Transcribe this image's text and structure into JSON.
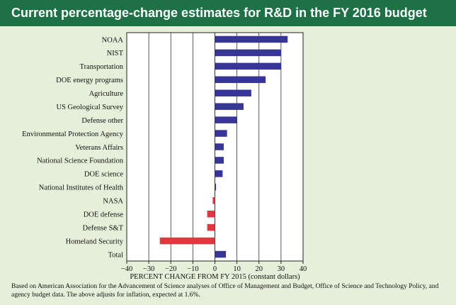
{
  "header": {
    "title": "Current percentage-change estimates for R&D in the FY 2016 budget"
  },
  "footnote": "Based on American Association for the Advancement of Science analyses of Office of Management and Budget, Office of Science and Technology Policy, and agency budget data. The above adjusts for inflation, expected at 1.6%.",
  "colors": {
    "header_bg": "#1d7145",
    "positive_bar": "#373598",
    "negative_bar": "#e4373d",
    "background": "#e6efd9"
  },
  "chart_data": {
    "type": "bar",
    "orientation": "horizontal",
    "title": "",
    "xlabel": "PERCENT CHANGE FROM FY 2015 (constant dollars)",
    "ylabel": "",
    "xlim": [
      -40,
      40
    ],
    "xticks": [
      -40,
      -30,
      -20,
      -10,
      0,
      10,
      20,
      30,
      40
    ],
    "xtick_labels": [
      "−40",
      "−30",
      "−20",
      "−10",
      "0",
      "10",
      "20",
      "30",
      "40"
    ],
    "grid": true,
    "categories": [
      "NOAA",
      "NIST",
      "Transportation",
      "DOE energy programs",
      "Agriculture",
      "US Geological Survey",
      "Defense other",
      "Environmental Protection Agency",
      "Veterans Affairs",
      "National Science Foundation",
      "DOE science",
      "National Institutes of Health",
      "NASA",
      "DOE defense",
      "Defense S&T",
      "Homeland Security",
      "Total"
    ],
    "values": [
      33,
      30,
      30,
      23,
      16.5,
      13,
      10,
      5.5,
      4,
      4,
      3.5,
      0.5,
      -1,
      -3.5,
      -3.5,
      -25,
      5
    ]
  }
}
